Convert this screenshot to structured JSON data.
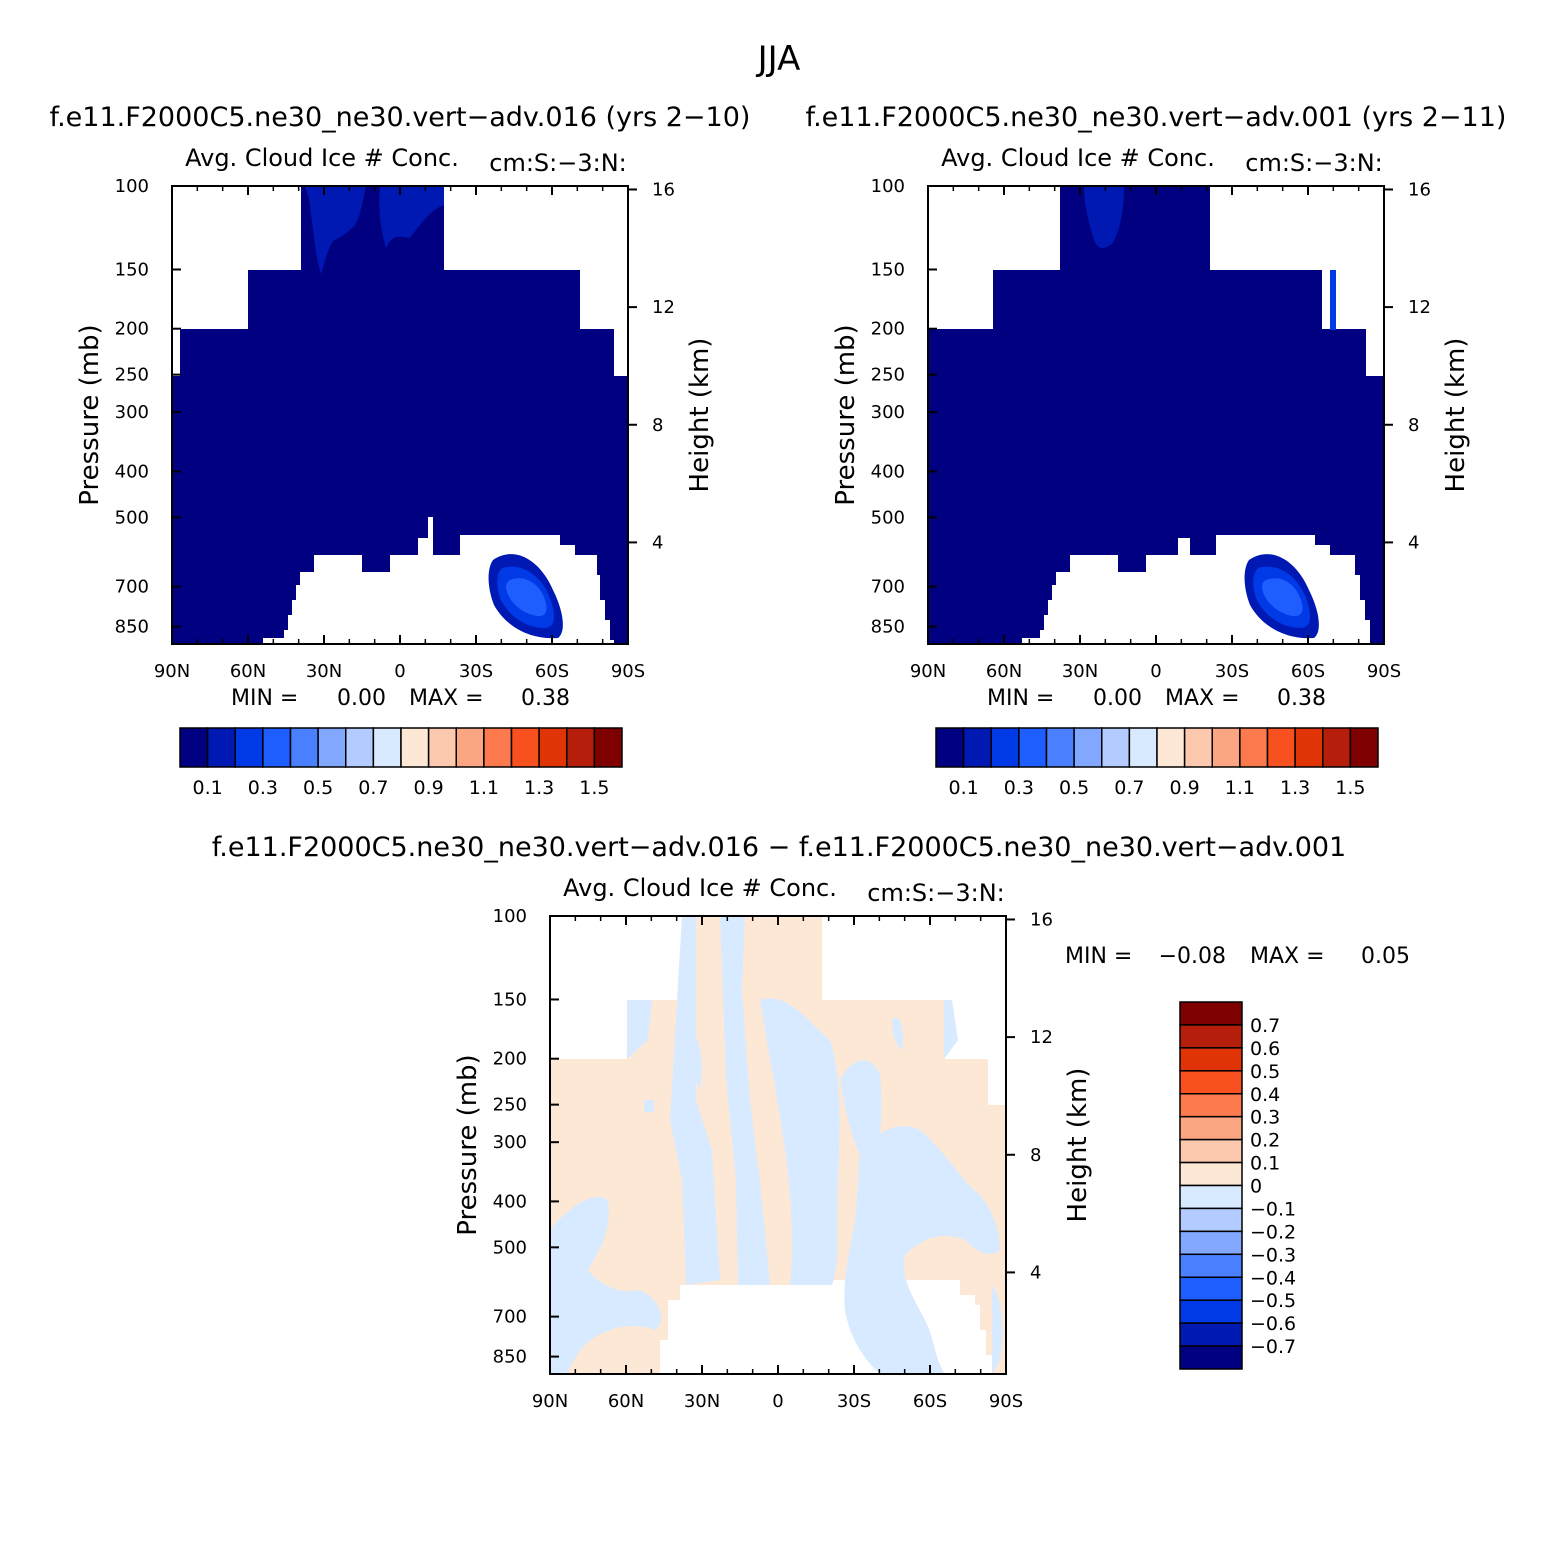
{
  "figure": {
    "season": "JJA",
    "panel1_header": "f.e11.F2000C5.ne30_ne30.vert−adv.016 (yrs 2−10)",
    "panel2_header": "f.e11.F2000C5.ne30_ne30.vert−adv.001 (yrs 2−11)",
    "panel3_header": "f.e11.F2000C5.ne30_ne30.vert−adv.016 − f.e11.F2000C5.ne30_ne30.vert−adv.001"
  },
  "chart_data": [
    {
      "type": "heatmap",
      "variable": "Avg. Cloud Ice # Conc.",
      "units": "cm:S:−3:N:",
      "xlabel": "",
      "ylabel": "Pressure (mb)",
      "ylabel_right": "Height (km)",
      "x_ticks": [
        "90N",
        "60N",
        "30N",
        "0",
        "30S",
        "60S",
        "90S"
      ],
      "y_ticks": [
        100,
        150,
        200,
        250,
        300,
        400,
        500,
        700,
        850
      ],
      "y_right_ticks": [
        16,
        12,
        8,
        4
      ],
      "stats": {
        "min_label": "MIN =",
        "min": "0.00",
        "max_label": "MAX =",
        "max": "0.38"
      },
      "colorbar": {
        "orientation": "horizontal",
        "labels": [
          "0.1",
          "0.3",
          "0.5",
          "0.7",
          "0.9",
          "1.1",
          "1.3",
          "1.5"
        ],
        "colors": [
          "#000080",
          "#0019b3",
          "#0039e6",
          "#1e5eff",
          "#4a80ff",
          "#82a7ff",
          "#b3cbff",
          "#d8eaff",
          "#fde8d6",
          "#fcc9ae",
          "#fca582",
          "#fc7a4e",
          "#f8501f",
          "#e03407",
          "#b51e0a",
          "#7f0000"
        ]
      }
    },
    {
      "type": "heatmap",
      "variable": "Avg. Cloud Ice # Conc.",
      "units": "cm:S:−3:N:",
      "xlabel": "",
      "ylabel": "Pressure (mb)",
      "ylabel_right": "Height (km)",
      "x_ticks": [
        "90N",
        "60N",
        "30N",
        "0",
        "30S",
        "60S",
        "90S"
      ],
      "y_ticks": [
        100,
        150,
        200,
        250,
        300,
        400,
        500,
        700,
        850
      ],
      "y_right_ticks": [
        16,
        12,
        8,
        4
      ],
      "stats": {
        "min_label": "MIN =",
        "min": "0.00",
        "max_label": "MAX =",
        "max": "0.38"
      },
      "colorbar": {
        "orientation": "horizontal",
        "labels": [
          "0.1",
          "0.3",
          "0.5",
          "0.7",
          "0.9",
          "1.1",
          "1.3",
          "1.5"
        ],
        "colors": [
          "#000080",
          "#0019b3",
          "#0039e6",
          "#1e5eff",
          "#4a80ff",
          "#82a7ff",
          "#b3cbff",
          "#d8eaff",
          "#fde8d6",
          "#fcc9ae",
          "#fca582",
          "#fc7a4e",
          "#f8501f",
          "#e03407",
          "#b51e0a",
          "#7f0000"
        ]
      }
    },
    {
      "type": "heatmap",
      "variable": "Avg. Cloud Ice # Conc.",
      "units": "cm:S:−3:N:",
      "xlabel": "",
      "ylabel": "Pressure (mb)",
      "ylabel_right": "Height (km)",
      "x_ticks": [
        "90N",
        "60N",
        "30N",
        "0",
        "30S",
        "60S",
        "90S"
      ],
      "y_ticks": [
        100,
        150,
        200,
        250,
        300,
        400,
        500,
        700,
        850
      ],
      "y_right_ticks": [
        16,
        12,
        8,
        4
      ],
      "stats": {
        "min_label": "MIN =",
        "min": "−0.08",
        "max_label": "MAX =",
        "max": "0.05"
      },
      "colorbar": {
        "orientation": "vertical",
        "labels": [
          "0.7",
          "0.6",
          "0.5",
          "0.4",
          "0.3",
          "0.2",
          "0.1",
          "0",
          "−0.1",
          "−0.2",
          "−0.3",
          "−0.4",
          "−0.5",
          "−0.6",
          "−0.7"
        ],
        "colors": [
          "#7f0000",
          "#b51e0a",
          "#e03407",
          "#f8501f",
          "#fc7a4e",
          "#fca582",
          "#fcc9ae",
          "#fde8d6",
          "#d8eaff",
          "#b3cbff",
          "#82a7ff",
          "#4a80ff",
          "#1e5eff",
          "#0039e6",
          "#0019b3",
          "#000080"
        ]
      }
    }
  ]
}
